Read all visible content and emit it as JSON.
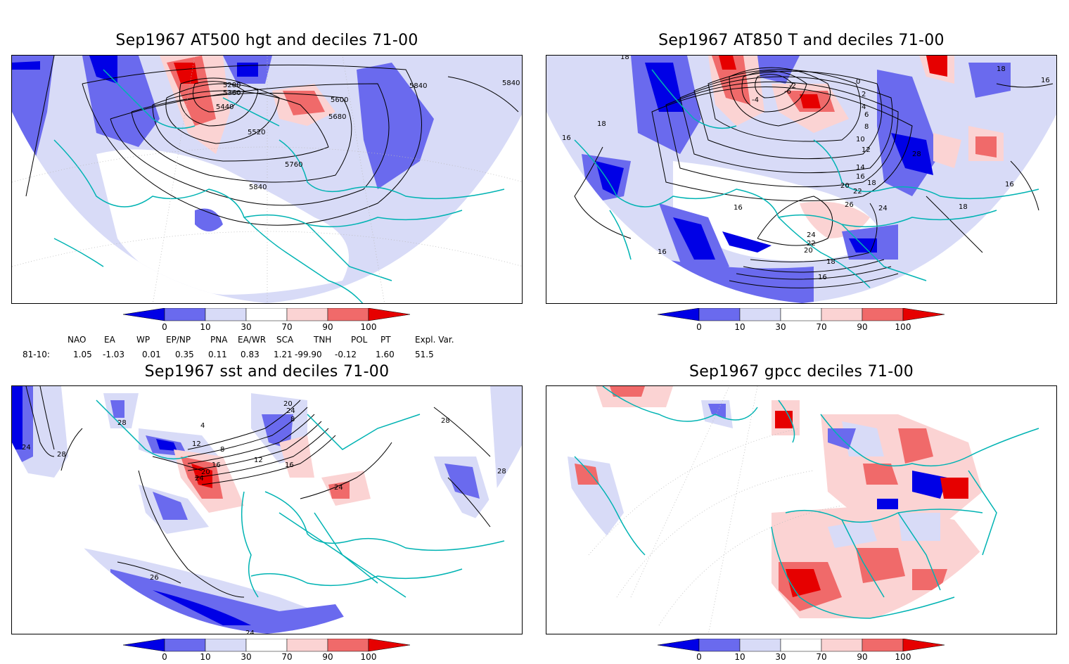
{
  "panels": [
    {
      "title": "Sep1967 AT500 hgt and deciles 71-00",
      "contour_labels": [
        "5280",
        "5360",
        "5440",
        "5520",
        "5600",
        "5680",
        "5760",
        "5840",
        "5840",
        "5840"
      ]
    },
    {
      "title": "Sep1967 AT850 T and deciles 71-00",
      "contour_labels": [
        "18",
        "16",
        "18",
        "0",
        "2",
        "4",
        "6",
        "8",
        "10",
        "12",
        "14",
        "16",
        "18",
        "20",
        "22",
        "24",
        "26",
        "28",
        "16",
        "18",
        "16",
        "-6",
        "-2",
        "-4",
        "24",
        "22",
        "20",
        "18",
        "16",
        "16",
        "18",
        "16"
      ]
    },
    {
      "title": "Sep1967 sst and deciles 71-00",
      "contour_labels": [
        "28",
        "24",
        "28",
        "4",
        "8",
        "12",
        "16",
        "20",
        "24",
        "8",
        "12",
        "16",
        "20",
        "24",
        "24",
        "28",
        "28",
        "26",
        "24"
      ]
    },
    {
      "title": "Sep1967 gpcc deciles 71-00",
      "contour_labels": []
    }
  ],
  "colorbar": {
    "ticks": [
      "0",
      "10",
      "30",
      "70",
      "90",
      "100"
    ],
    "colors": [
      "#0000e6",
      "#6a6aee",
      "#d8dbf7",
      "#ffffff",
      "#fbd3d3",
      "#f06a6a",
      "#e60000"
    ]
  },
  "indices": {
    "headers": [
      "NAO",
      "EA",
      "WP",
      "EP/NP",
      "PNA",
      "EA/WR",
      "SCA",
      "TNH",
      "POL",
      "PT",
      "Expl. Var."
    ],
    "row_label": "81-10:",
    "values": [
      "1.05",
      "-1.03",
      "0.01",
      "0.35",
      "0.11",
      "0.83",
      "1.21",
      "-99.90",
      "-0.12",
      "1.60",
      "51.5"
    ]
  }
}
